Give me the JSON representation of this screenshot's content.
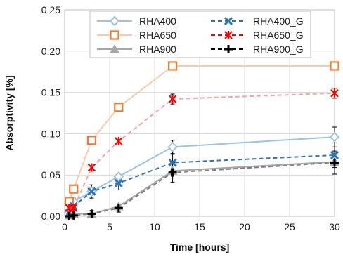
{
  "chart_data": {
    "type": "line",
    "title": "",
    "xlabel": "Time [hours]",
    "ylabel": "Absorptivity [%]",
    "xlim": [
      0,
      30
    ],
    "ylim": [
      0,
      0.25
    ],
    "xticks": [
      0,
      5,
      10,
      15,
      20,
      25,
      30
    ],
    "yticks": [
      0.0,
      0.05,
      0.1,
      0.15,
      0.2,
      0.25
    ],
    "xtick_labels": [
      "0",
      "5",
      "10",
      "15",
      "20",
      "25",
      "30"
    ],
    "ytick_labels": [
      "0.00",
      "0.05",
      "0.10",
      "0.15",
      "0.20",
      "0.25"
    ],
    "grid": true,
    "legend_position": "top",
    "series": [
      {
        "name": "RHA400",
        "color": "#9dc3e6",
        "dash": "solid",
        "marker": "diamond",
        "x": [
          0.5,
          1,
          3,
          6,
          12,
          30
        ],
        "y": [
          0.005,
          0.018,
          0.03,
          0.048,
          0.084,
          0.096
        ],
        "err": [
          0,
          0,
          0,
          0,
          0.008,
          0.012
        ]
      },
      {
        "name": "RHA650",
        "color": "#ed7d31",
        "line_color": "#f8cbad",
        "dash": "solid",
        "marker": "square",
        "x": [
          0.5,
          1,
          3,
          6,
          12,
          30
        ],
        "y": [
          0.018,
          0.033,
          0.092,
          0.132,
          0.182,
          0.182
        ],
        "err": [
          0,
          0,
          0,
          0,
          0,
          0
        ]
      },
      {
        "name": "RHA900",
        "color": "#a6a6a6",
        "dash": "solid",
        "marker": "triangle",
        "x": [
          0.5,
          1,
          3,
          6,
          12,
          30
        ],
        "y": [
          0.001,
          0.003,
          0.003,
          0.012,
          0.055,
          0.066
        ],
        "err": [
          0,
          0,
          0,
          0,
          0,
          0
        ]
      },
      {
        "name": "RHA400_G",
        "color": "#2e75b6",
        "dash": "dashed",
        "marker": "x",
        "x": [
          0.5,
          1,
          3,
          6,
          12,
          30
        ],
        "y": [
          0.004,
          0.012,
          0.03,
          0.04,
          0.065,
          0.074
        ],
        "err": [
          0.003,
          0.01,
          0.008,
          0.008,
          0.01,
          0.015
        ]
      },
      {
        "name": "RHA650_G",
        "color": "#ff0000",
        "line_color": "#f4a6a6",
        "dash": "dashed",
        "marker": "asterisk",
        "x": [
          0.5,
          1,
          3,
          6,
          12,
          30
        ],
        "y": [
          0.01,
          0.01,
          0.059,
          0.091,
          0.142,
          0.149
        ],
        "err": [
          0,
          0,
          0,
          0,
          0.006,
          0.006
        ]
      },
      {
        "name": "RHA900_G",
        "color": "#000000",
        "line_color": "#808080",
        "dash": "dashed",
        "marker": "plus",
        "x": [
          0.5,
          1,
          3,
          6,
          12,
          30
        ],
        "y": [
          0.0,
          0.001,
          0.003,
          0.01,
          0.053,
          0.065
        ],
        "err": [
          0.003,
          0.003,
          0.004,
          0.005,
          0.012,
          0.014
        ]
      }
    ]
  }
}
